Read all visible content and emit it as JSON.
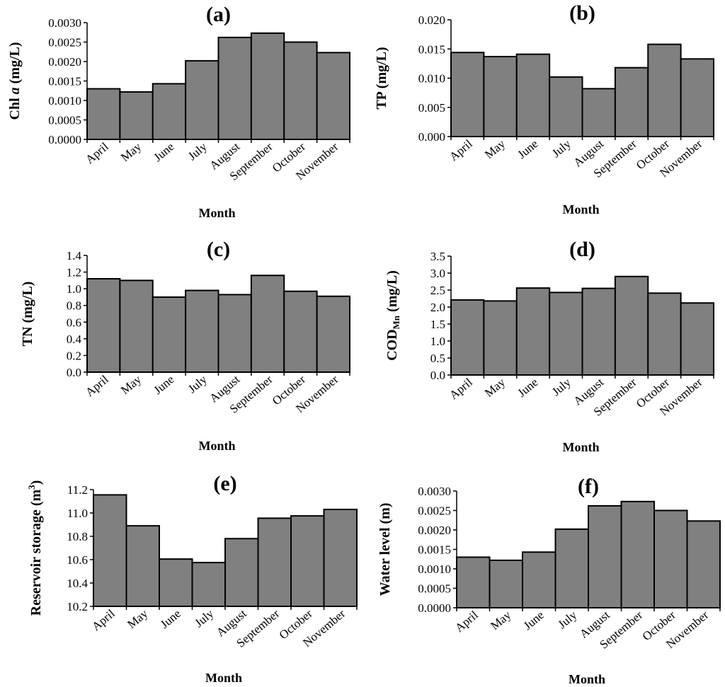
{
  "chart_data": [
    {
      "type": "bar",
      "title": "(a)",
      "xlabel": "Month",
      "ylabel_parts": [
        "Chl ",
        "a",
        " (mg/L)"
      ],
      "categories": [
        "April",
        "May",
        "June",
        "July",
        "August",
        "September",
        "October",
        "November"
      ],
      "values": [
        0.0013,
        0.00122,
        0.00143,
        0.00202,
        0.00262,
        0.00273,
        0.0025,
        0.00223
      ],
      "ylim": [
        0,
        0.003
      ],
      "yticks": [
        "0.0000",
        "0.0005",
        "0.0010",
        "0.0015",
        "0.0020",
        "0.0025",
        "0.0030"
      ]
    },
    {
      "type": "bar",
      "title": "(b)",
      "xlabel": "Month",
      "ylabel_parts": [
        "TP (mg/L)"
      ],
      "categories": [
        "April",
        "May",
        "June",
        "July",
        "August",
        "September",
        "October",
        "November"
      ],
      "values": [
        0.0144,
        0.0137,
        0.0141,
        0.0102,
        0.0082,
        0.0118,
        0.0158,
        0.0133
      ],
      "ylim": [
        0,
        0.02
      ],
      "yticks": [
        "0.000",
        "0.005",
        "0.010",
        "0.015",
        "0.020"
      ]
    },
    {
      "type": "bar",
      "title": "(c)",
      "xlabel": "Month",
      "ylabel_parts": [
        "TN  (mg/L)"
      ],
      "categories": [
        "April",
        "May",
        "June",
        "July",
        "August",
        "September",
        "October",
        "November"
      ],
      "values": [
        1.12,
        1.1,
        0.9,
        0.98,
        0.93,
        1.16,
        0.97,
        0.91
      ],
      "ylim": [
        0,
        1.4
      ],
      "yticks": [
        "0.0",
        "0.2",
        "0.4",
        "0.6",
        "0.8",
        "1.0",
        "1.2",
        "1.4"
      ]
    },
    {
      "type": "bar",
      "title": "(d)",
      "xlabel": "Month",
      "ylabel_parts": [
        "COD",
        "Mn",
        " (mg/L)"
      ],
      "categories": [
        "April",
        "May",
        "June",
        "July",
        "August",
        "September",
        "October",
        "November"
      ],
      "values": [
        2.21,
        2.18,
        2.56,
        2.43,
        2.55,
        2.9,
        2.41,
        2.12
      ],
      "ylim": [
        0,
        3.5
      ],
      "yticks": [
        "0.0",
        "0.5",
        "1.0",
        "1.5",
        "2.0",
        "2.5",
        "3.0",
        "3.5"
      ]
    },
    {
      "type": "bar",
      "title": "(e)",
      "xlabel": "Month",
      "ylabel_parts": [
        "Reservoir storage (m",
        "3",
        ")"
      ],
      "categories": [
        "April",
        "May",
        "June",
        "July",
        "August",
        "September",
        "October",
        "November"
      ],
      "values": [
        11.155,
        10.89,
        10.605,
        10.575,
        10.78,
        10.955,
        10.975,
        11.03
      ],
      "ylim": [
        10.2,
        11.2
      ],
      "yticks": [
        "10.2",
        "10.4",
        "10.6",
        "10.8",
        "11.0",
        "11.2"
      ]
    },
    {
      "type": "bar",
      "title": "(f)",
      "xlabel": "Month",
      "ylabel_parts": [
        "Water level (m)"
      ],
      "categories": [
        "April",
        "May",
        "June",
        "July",
        "August",
        "September",
        "October",
        "November"
      ],
      "values": [
        0.0013,
        0.00122,
        0.00143,
        0.00202,
        0.00262,
        0.00273,
        0.0025,
        0.00223
      ],
      "ylim": [
        0,
        0.003
      ],
      "yticks": [
        "0.0000",
        "0.0005",
        "0.0010",
        "0.0015",
        "0.0020",
        "0.0025",
        "0.0030"
      ]
    }
  ]
}
